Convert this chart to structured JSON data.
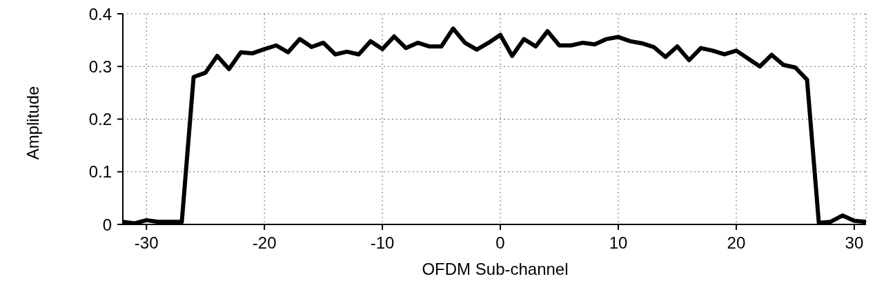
{
  "chart_data": {
    "type": "line",
    "xlabel": "OFDM Sub-channel",
    "ylabel": "Amplitude",
    "x": [
      -32,
      -31,
      -30,
      -29,
      -28,
      -27,
      -26,
      -25,
      -24,
      -23,
      -22,
      -21,
      -20,
      -19,
      -18,
      -17,
      -16,
      -15,
      -14,
      -13,
      -12,
      -11,
      -10,
      -9,
      -8,
      -7,
      -6,
      -5,
      -4,
      -3,
      -2,
      -1,
      0,
      1,
      2,
      3,
      4,
      5,
      6,
      7,
      8,
      9,
      10,
      11,
      12,
      13,
      14,
      15,
      16,
      17,
      18,
      19,
      20,
      21,
      22,
      23,
      24,
      25,
      26,
      27,
      28,
      29,
      30,
      31
    ],
    "series": [
      {
        "color": "#000000",
        "values": [
          0.005,
          0.002,
          0.008,
          0.005,
          0.005,
          0.005,
          0.28,
          0.288,
          0.32,
          0.295,
          0.327,
          0.325,
          0.333,
          0.34,
          0.327,
          0.352,
          0.337,
          0.345,
          0.323,
          0.328,
          0.323,
          0.348,
          0.333,
          0.357,
          0.335,
          0.345,
          0.338,
          0.338,
          0.372,
          0.345,
          0.332,
          0.345,
          0.36,
          0.32,
          0.352,
          0.338,
          0.367,
          0.34,
          0.34,
          0.345,
          0.342,
          0.352,
          0.356,
          0.348,
          0.344,
          0.337,
          0.318,
          0.338,
          0.312,
          0.335,
          0.33,
          0.323,
          0.33,
          0.315,
          0.3,
          0.322,
          0.303,
          0.298,
          0.275,
          0.003,
          0.005,
          0.017,
          0.007,
          0.005
        ]
      }
    ],
    "xlim": [
      -32,
      31
    ],
    "xticks": [
      -30,
      -20,
      -10,
      0,
      10,
      20,
      30
    ],
    "ylim": [
      0,
      0.4
    ],
    "yticks": [
      0,
      0.1,
      0.2,
      0.3,
      0.4
    ],
    "grid": true,
    "legend": false,
    "marker": "none",
    "line_style": "solid"
  }
}
